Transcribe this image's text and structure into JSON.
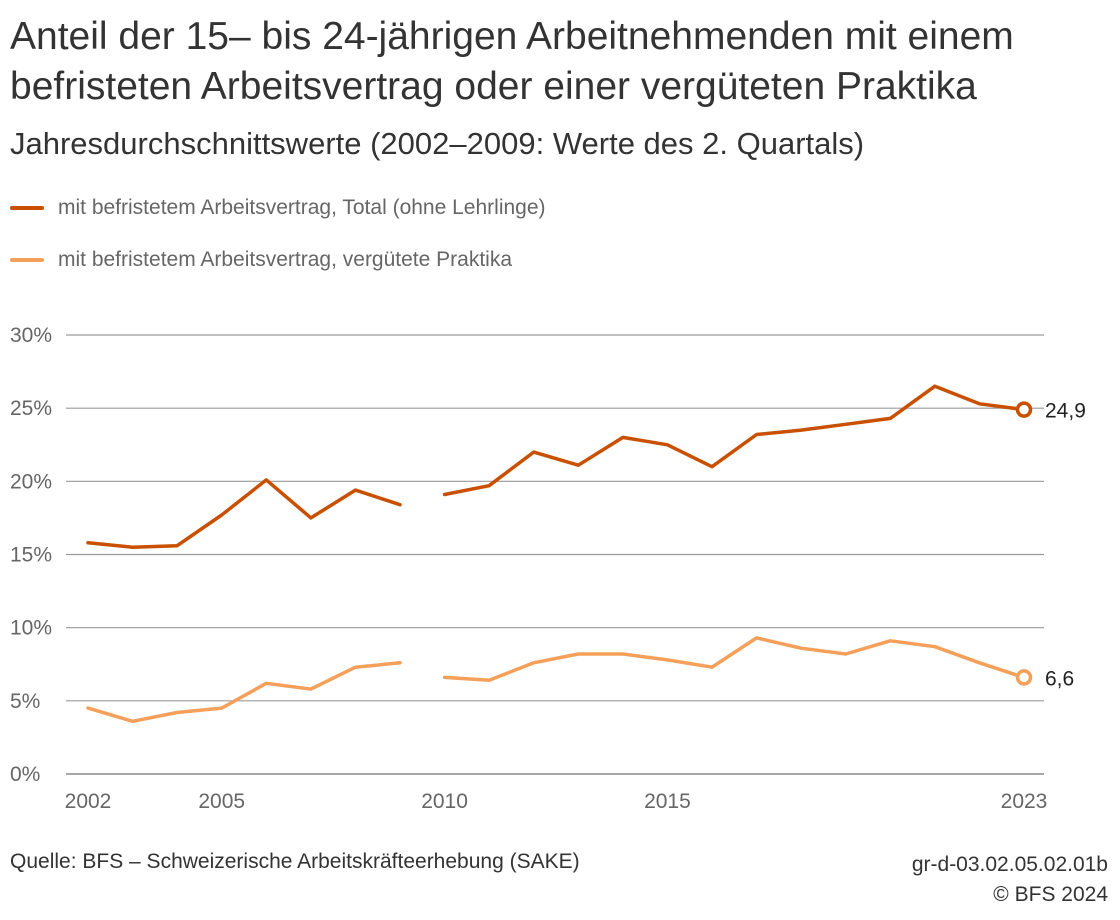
{
  "header": {
    "title": "Anteil der 15– bis 24-jährigen Arbeitnehmenden mit einem befristeten Arbeitsvertrag oder einer vergüteten Praktika",
    "subtitle": "Jahresdurchschnittswerte (2002–2009: Werte des 2. Quartals)"
  },
  "footer": {
    "source": "Quelle: BFS – Schweizerische Arbeitskräfteerhebung (SAKE)",
    "code": "gr-d-03.02.05.02.01b",
    "copyright": "© BFS 2024"
  },
  "colors": {
    "total": "#c85000",
    "praktika": "#f5a05a",
    "grid": "#9a9a9a",
    "axis_text": "#666666"
  },
  "chart_data": {
    "type": "line",
    "title": "Anteil der 15– bis 24-jährigen Arbeitnehmenden mit einem befristeten Arbeitsvertrag oder einer vergüteten Praktika",
    "subtitle": "Jahresdurchschnittswerte (2002–2009: Werte des 2. Quartals)",
    "xlabel": "",
    "ylabel": "",
    "xlim": [
      2002,
      2023
    ],
    "ylim": [
      0,
      30
    ],
    "x_ticks": [
      2002,
      2005,
      2010,
      2015,
      2023
    ],
    "y_ticks": [
      0,
      5,
      10,
      15,
      20,
      25,
      30
    ],
    "y_tick_labels": [
      "0%",
      "5%",
      "10%",
      "15%",
      "20%",
      "25%",
      "30%"
    ],
    "grid": true,
    "legend_position": "top-left",
    "x": [
      2002,
      2003,
      2004,
      2005,
      2006,
      2007,
      2008,
      2009,
      2010,
      2011,
      2012,
      2013,
      2014,
      2015,
      2016,
      2017,
      2018,
      2019,
      2020,
      2021,
      2022,
      2023
    ],
    "series": [
      {
        "name": "mit befristetem Arbeitsvertrag, Total (ohne Lehrlinge)",
        "color_key": "total",
        "values": [
          15.8,
          15.5,
          15.6,
          17.7,
          20.1,
          17.5,
          19.4,
          18.4,
          19.1,
          19.7,
          22.0,
          21.1,
          23.0,
          22.5,
          21.0,
          23.2,
          23.5,
          23.9,
          24.3,
          26.5,
          25.3,
          24.9
        ],
        "end_label": "24,9"
      },
      {
        "name": "mit befristetem Arbeitsvertrag, vergütete Praktika",
        "color_key": "praktika",
        "values": [
          4.5,
          3.6,
          4.2,
          4.5,
          6.2,
          5.8,
          7.3,
          7.6,
          6.6,
          6.4,
          7.6,
          8.2,
          8.2,
          7.8,
          7.3,
          9.3,
          8.6,
          8.2,
          9.1,
          8.7,
          7.6,
          6.6
        ],
        "end_label": "6,6"
      }
    ],
    "gap_between": [
      2009,
      2010
    ]
  }
}
